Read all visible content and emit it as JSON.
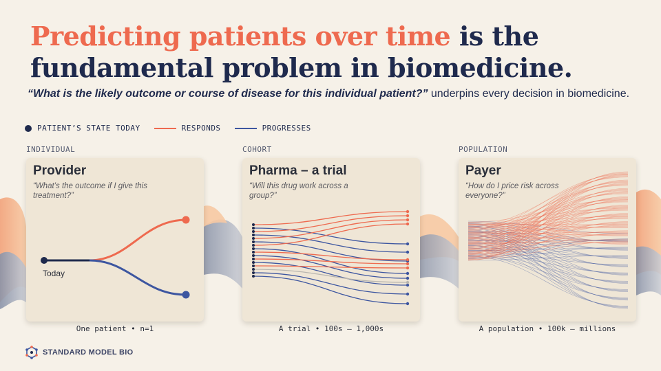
{
  "title": {
    "accent": "Predicting patients over time",
    "rest_line1": " is the",
    "line2": "fundamental problem in biomedicine."
  },
  "subtitle": {
    "question": "“What is the likely outcome or course of disease for this individual patient?”",
    "rest": " underpins every decision in biomedicine."
  },
  "legend": [
    {
      "label": "PATIENT’S STATE TODAY",
      "color": "#1f2a4d",
      "kind": "dot"
    },
    {
      "label": "RESPONDS",
      "color": "#ee6a4f",
      "kind": "line"
    },
    {
      "label": "PROGRESSES",
      "color": "#3d56a0",
      "kind": "line"
    }
  ],
  "columns": [
    {
      "heading": "INDIVIDUAL",
      "card_title": "Provider",
      "quote": "“What’s the outcome if I give this treatment?”",
      "caption": "One patient • n=1"
    },
    {
      "heading": "COHORT",
      "card_title": "Pharma – a trial",
      "quote": "“Will this drug work across a group?”",
      "caption": "A trial • 100s – 1,000s"
    },
    {
      "heading": "POPULATION",
      "card_title": "Payer",
      "quote": "“How do I price risk across everyone?”",
      "caption": "A population • 100k – millions"
    }
  ],
  "today_label": "Today",
  "brand": "STANDARD MODEL BIO",
  "colors": {
    "responds": "#ee6a4f",
    "progresses": "#3d56a0",
    "today": "#1f2a4d",
    "neutral": "#b9b6b0"
  }
}
